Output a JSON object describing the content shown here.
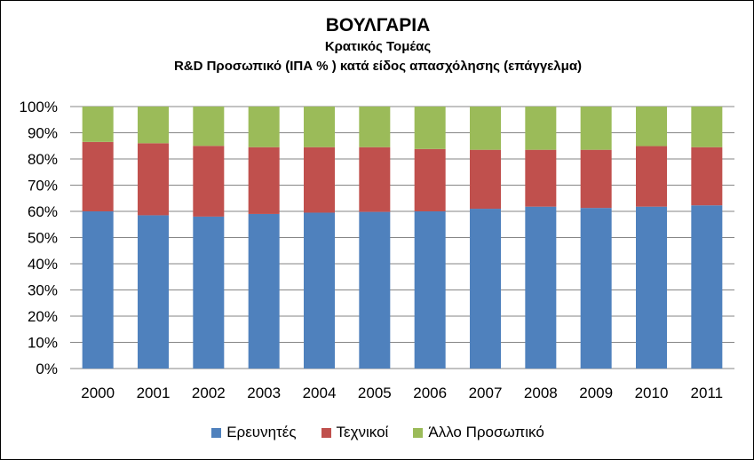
{
  "chart_data": {
    "type": "bar",
    "stacked": true,
    "title": "ΒΟΥΛΓΑΡΙΑ",
    "subtitle": "Κρατικός Τομέας",
    "subtitle2": "R&D  Προσωπικό (ΙΠΑ % ) κατά είδος απασχόλησης (επάγγελμα)",
    "xlabel": "",
    "ylabel": "",
    "ylim": [
      0,
      100
    ],
    "y_ticks": [
      "0%",
      "10%",
      "20%",
      "30%",
      "40%",
      "50%",
      "60%",
      "70%",
      "80%",
      "90%",
      "100%"
    ],
    "grid": true,
    "legend_position": "bottom",
    "categories": [
      "2000",
      "2001",
      "2002",
      "2003",
      "2004",
      "2005",
      "2006",
      "2007",
      "2008",
      "2009",
      "2010",
      "2011"
    ],
    "series": [
      {
        "name": "Ερευνητές",
        "color": "#4F81BD",
        "values": [
          60,
          58.5,
          58,
          59,
          59.5,
          59.8,
          60,
          61,
          61.8,
          61.3,
          61.8,
          62.3
        ]
      },
      {
        "name": "Τεχνικοί",
        "color": "#C0504D",
        "values": [
          26.5,
          27.5,
          27,
          25.5,
          25,
          24.7,
          23.8,
          22.5,
          21.7,
          22.2,
          23.1,
          22.2
        ]
      },
      {
        "name": "Άλλο Προσωπικό",
        "color": "#9BBB59",
        "values": [
          13.5,
          14,
          15,
          15.5,
          15.5,
          15.5,
          16.2,
          16.5,
          16.5,
          16.5,
          15.1,
          15.5
        ]
      }
    ]
  }
}
